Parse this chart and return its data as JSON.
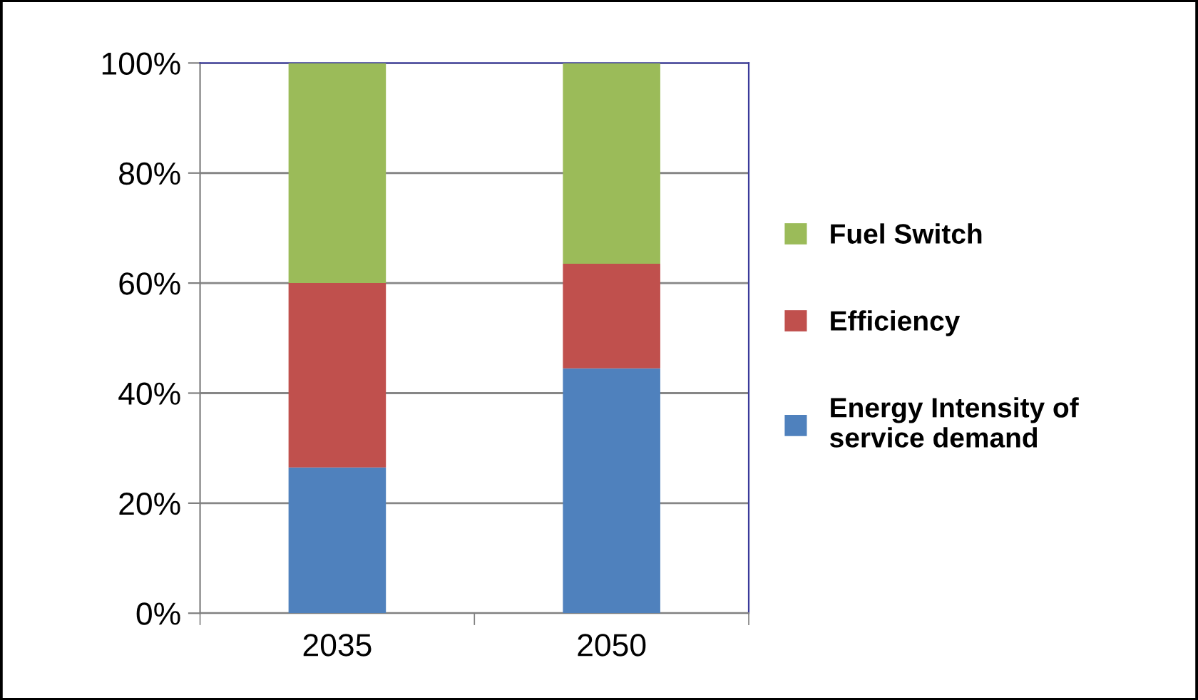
{
  "chart_data": {
    "type": "bar",
    "stacked": true,
    "categories": [
      "2035",
      "2050"
    ],
    "series": [
      {
        "name": "Energy Intensity of\nservice demand",
        "color": "#4f81bd",
        "values": [
          26.5,
          44.5
        ]
      },
      {
        "name": "Efficiency",
        "color": "#c0504d",
        "values": [
          33.5,
          19
        ]
      },
      {
        "name": "Fuel Switch",
        "color": "#9bbb59",
        "values": [
          40,
          36.5
        ]
      }
    ],
    "ylim": [
      0,
      100
    ],
    "yticks": [
      {
        "value": 0,
        "label": "0%"
      },
      {
        "value": 20,
        "label": "20%"
      },
      {
        "value": 40,
        "label": "40%"
      },
      {
        "value": 60,
        "label": "60%"
      },
      {
        "value": 80,
        "label": "80%"
      },
      {
        "value": 100,
        "label": "100%"
      }
    ],
    "grid": "y",
    "legend": "right"
  }
}
